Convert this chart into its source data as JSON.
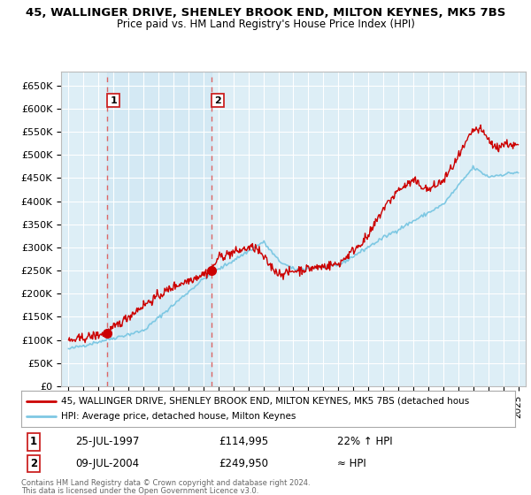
{
  "title1": "45, WALLINGER DRIVE, SHENLEY BROOK END, MILTON KEYNES, MK5 7BS",
  "title2": "Price paid vs. HM Land Registry's House Price Index (HPI)",
  "ylabel_ticks": [
    "£0",
    "£50K",
    "£100K",
    "£150K",
    "£200K",
    "£250K",
    "£300K",
    "£350K",
    "£400K",
    "£450K",
    "£500K",
    "£550K",
    "£600K",
    "£650K"
  ],
  "ytick_values": [
    0,
    50000,
    100000,
    150000,
    200000,
    250000,
    300000,
    350000,
    400000,
    450000,
    500000,
    550000,
    600000,
    650000
  ],
  "ylim": [
    0,
    680000
  ],
  "xlim_start": 1994.5,
  "xlim_end": 2025.5,
  "sale1_x": 1997.56,
  "sale1_y": 114995,
  "sale2_x": 2004.52,
  "sale2_y": 249950,
  "sale1_date": "25-JUL-1997",
  "sale1_price": "£114,995",
  "sale1_hpi": "22% ↑ HPI",
  "sale2_date": "09-JUL-2004",
  "sale2_price": "£249,950",
  "sale2_hpi": "≈ HPI",
  "hpi_line_color": "#7ec8e3",
  "price_line_color": "#cc0000",
  "sale_dot_color": "#cc0000",
  "bg_plot": "#ddeef6",
  "grid_color": "#ffffff",
  "dashed_line_color": "#dd6666",
  "shade_between_color": "#cce0f0",
  "legend_line1": "45, WALLINGER DRIVE, SHENLEY BROOK END, MILTON KEYNES, MK5 7BS (detached hous",
  "legend_line2": "HPI: Average price, detached house, Milton Keynes",
  "footer1": "Contains HM Land Registry data © Crown copyright and database right 2024.",
  "footer2": "This data is licensed under the Open Government Licence v3.0."
}
